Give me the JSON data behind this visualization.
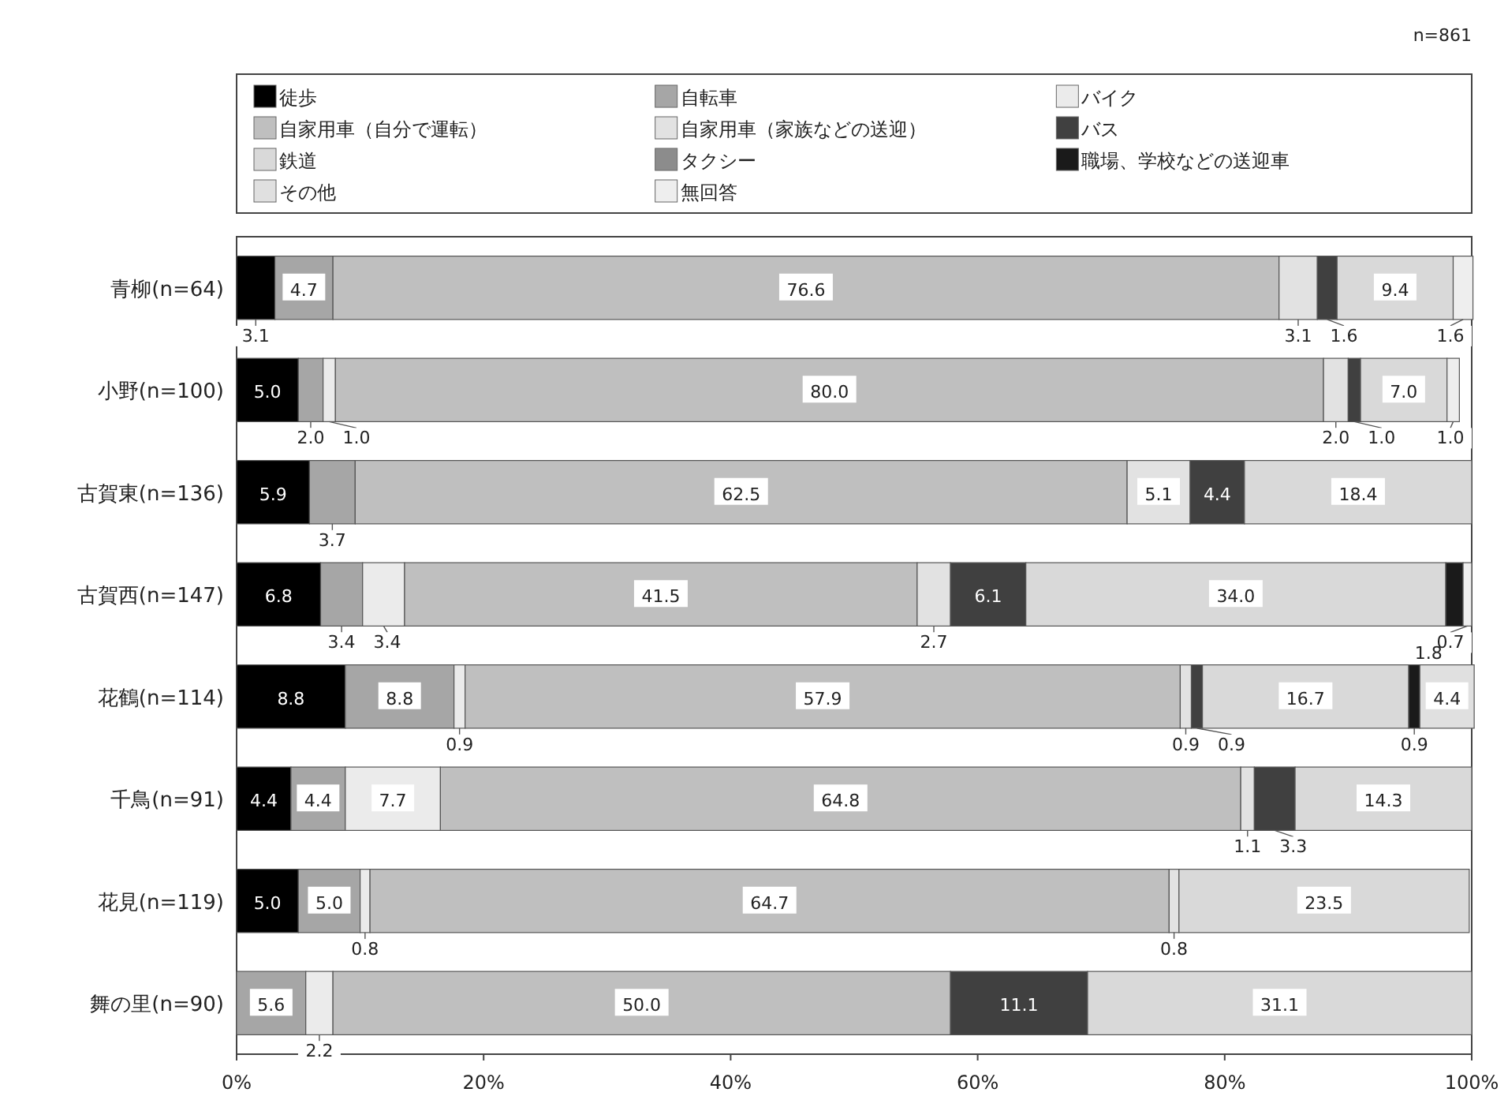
{
  "chart_data": {
    "type": "bar",
    "orientation": "horizontal",
    "stacked": true,
    "categories": [
      "青柳(n=64)",
      "小野(n=100)",
      "古賀東(n=136)",
      "古賀西(n=147)",
      "花鶴(n=114)",
      "千鳥(n=91)",
      "花見(n=119)",
      "舞の里(n=90)"
    ],
    "series": [
      {
        "name": "徒歩",
        "color": "#000000",
        "values": [
          3.1,
          5.0,
          5.9,
          6.8,
          8.8,
          4.4,
          5.0,
          null
        ],
        "value_labels": [
          "3.1",
          "5.0",
          "5.9",
          "6.8",
          "8.8",
          "4.4",
          "5.0",
          null
        ]
      },
      {
        "name": "自転車",
        "color": "#a6a6a6",
        "values": [
          4.7,
          2.0,
          3.7,
          3.4,
          8.8,
          4.4,
          5.0,
          5.6
        ],
        "value_labels": [
          "4.7",
          "2.0",
          "3.7",
          "3.4",
          "8.8",
          "4.4",
          "5.0",
          "5.6"
        ]
      },
      {
        "name": "バイク",
        "color": "#ebebeb",
        "values": [
          null,
          1.0,
          null,
          3.4,
          0.9,
          7.7,
          0.8,
          2.2
        ],
        "value_labels": [
          null,
          "1.0",
          null,
          "3.4",
          "0.9",
          "7.7",
          "0.8",
          "2.2"
        ]
      },
      {
        "name": "自家用車（自分で運転）",
        "color": "#bfbfbf",
        "values": [
          76.6,
          80.0,
          62.5,
          41.5,
          57.9,
          64.8,
          64.7,
          50.0
        ],
        "value_labels": [
          "76.6",
          "80.0",
          "62.5",
          "41.5",
          "57.9",
          "64.8",
          "64.7",
          "50.0"
        ]
      },
      {
        "name": "自家用車（家族などの送迎）",
        "color": "#e2e2e2",
        "values": [
          3.1,
          2.0,
          5.1,
          2.7,
          0.9,
          1.1,
          0.8,
          null
        ],
        "value_labels": [
          "3.1",
          "2.0",
          "5.1",
          "2.7",
          "0.9",
          "1.1",
          "0.8",
          null
        ]
      },
      {
        "name": "バス",
        "color": "#404040",
        "values": [
          1.6,
          1.0,
          4.4,
          6.1,
          0.9,
          3.3,
          null,
          11.1
        ],
        "value_labels": [
          "1.6",
          "1.0",
          "4.4",
          "6.1",
          "0.9",
          "3.3",
          null,
          "11.1"
        ]
      },
      {
        "name": "鉄道",
        "color": "#d9d9d9",
        "values": [
          9.4,
          7.0,
          18.4,
          34.0,
          16.7,
          14.3,
          23.5,
          31.1
        ],
        "value_labels": [
          "9.4",
          "7.0",
          "18.4",
          "34.0",
          "16.7",
          "14.3",
          "23.5",
          "31.1"
        ]
      },
      {
        "name": "タクシー",
        "color": "#8c8c8c",
        "values": [
          null,
          null,
          null,
          null,
          null,
          null,
          null,
          null
        ]
      },
      {
        "name": "職場、学校などの送迎車",
        "color": "#1a1a1a",
        "values": [
          null,
          null,
          null,
          1.4,
          0.9,
          null,
          null,
          null
        ],
        "value_labels": [
          null,
          null,
          null,
          null,
          "0.9",
          null,
          null,
          null
        ]
      },
      {
        "name": "その他",
        "color": "#e0e0e0",
        "values": [
          null,
          null,
          null,
          null,
          4.4,
          null,
          null,
          null
        ],
        "value_labels": [
          null,
          null,
          null,
          null,
          "4.4",
          null,
          null,
          null
        ]
      },
      {
        "name": "無回答",
        "color": "#eeeeee",
        "values": [
          1.6,
          1.0,
          null,
          0.7,
          null,
          null,
          null,
          null
        ],
        "value_labels": [
          "1.6",
          "1.0",
          null,
          "0.7",
          null,
          null,
          null,
          null
        ]
      }
    ],
    "xlim": [
      0,
      100
    ],
    "xticks": [
      {
        "value": 0,
        "label": "0%"
      },
      {
        "value": 20,
        "label": "20%"
      },
      {
        "value": 40,
        "label": "40%"
      },
      {
        "value": 60,
        "label": "60%"
      },
      {
        "value": 80,
        "label": "80%"
      },
      {
        "value": 100,
        "label": "100%"
      }
    ],
    "legend": "top",
    "grid": false,
    "annotations": [
      "n=861",
      "1.8"
    ]
  }
}
